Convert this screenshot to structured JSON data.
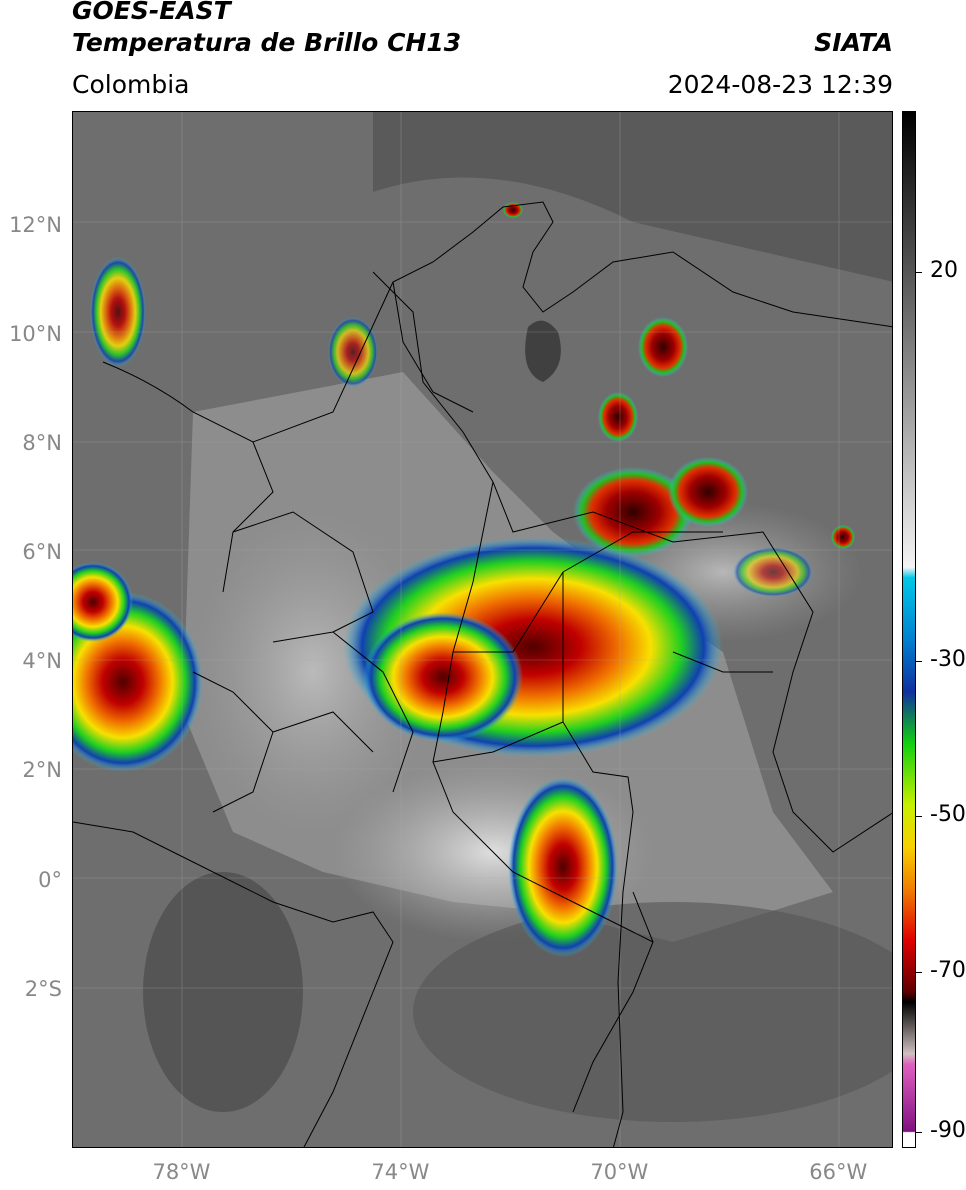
{
  "header": {
    "satellite": "GOES-EAST",
    "product": "Temperatura de Brillo CH13",
    "brand": "SIATA",
    "region": "Colombia",
    "timestamp": "2024-08-23 12:39"
  },
  "axes": {
    "lat_ticks": [
      {
        "value": 12,
        "label": "12°N"
      },
      {
        "value": 10,
        "label": "10°N"
      },
      {
        "value": 8,
        "label": "8°N"
      },
      {
        "value": 6,
        "label": "6°N"
      },
      {
        "value": 4,
        "label": "4°N"
      },
      {
        "value": 2,
        "label": "2°N"
      },
      {
        "value": 0,
        "label": "0°"
      },
      {
        "value": -2,
        "label": "2°S"
      }
    ],
    "lon_ticks": [
      {
        "value": -78,
        "label": "78°W"
      },
      {
        "value": -74,
        "label": "74°W"
      },
      {
        "value": -70,
        "label": "70°W"
      },
      {
        "value": -66,
        "label": "66°W"
      }
    ],
    "lat_range": [
      -4.9,
      14.1
    ],
    "lon_range": [
      -80,
      -65
    ]
  },
  "colorbar": {
    "ticks": [
      {
        "value": 20,
        "label": "20"
      },
      {
        "value": -30,
        "label": "-30"
      },
      {
        "value": -50,
        "label": "-50"
      },
      {
        "value": -70,
        "label": "-70"
      },
      {
        "value": -90,
        "label": "-90"
      }
    ],
    "colors": {
      "warm_top": "#000000",
      "gray": "#808080",
      "white": "#f4f4f4",
      "cyan": "#00c8e8",
      "blue": "#1030a0",
      "green": "#10d010",
      "yellow": "#f8f000",
      "orange": "#f08000",
      "red": "#e00000",
      "darkred": "#600000",
      "magenta": "#e060c0",
      "purple": "#801080"
    }
  }
}
